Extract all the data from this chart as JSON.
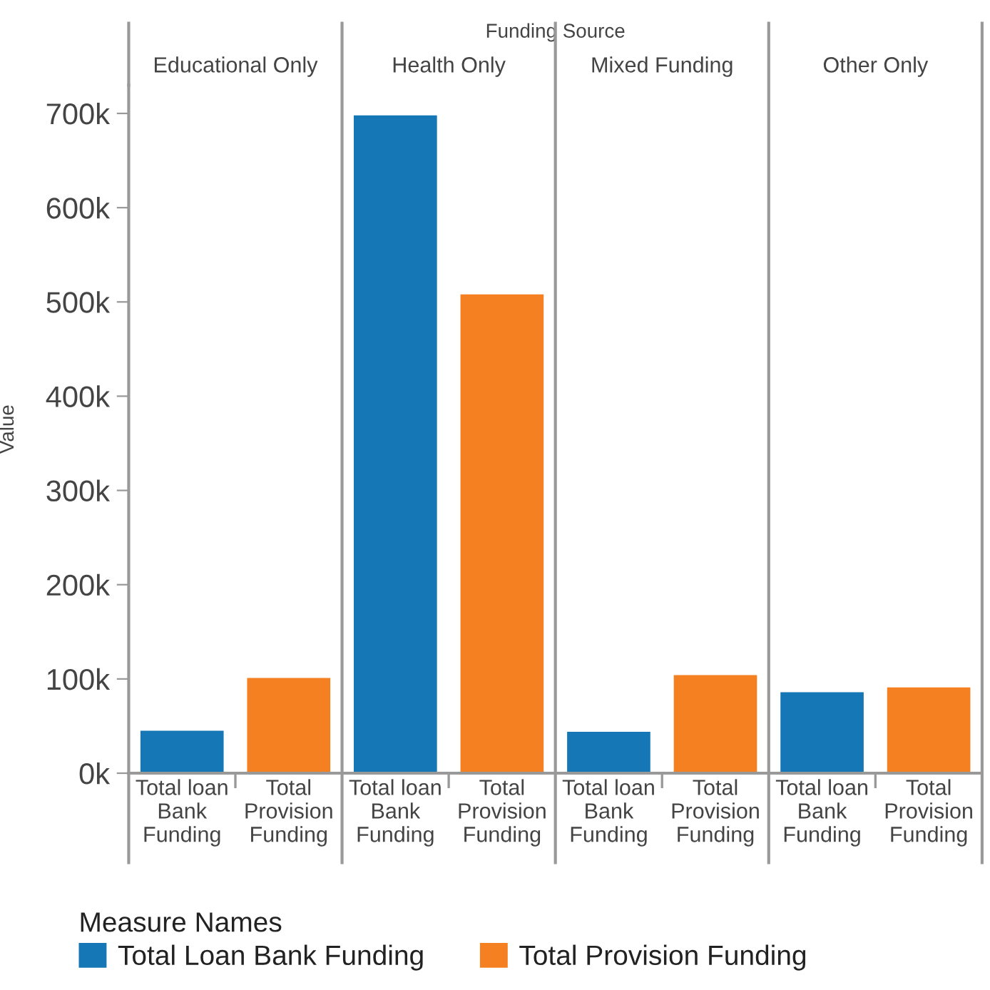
{
  "chart_data": {
    "type": "bar",
    "xlabel": "Funding Source",
    "annotations": [
      "Educational Only",
      "Health Only",
      "Mixed Funding",
      "Other Only"
    ],
    "ylabel": "Value",
    "legend_title": "Measure Names",
    "legend": "bottom",
    "categories": [
      "Total loan Bank Funding",
      "Total Provision Funding",
      "Total loan Bank Funding",
      "Total Provision Funding",
      "Total loan Bank Funding",
      "Total Provision Funding",
      "Total loan Bank Funding",
      "Total Provision Funding"
    ],
    "ylim": [
      0,
      730000
    ],
    "yticks": [
      {
        "value": 0,
        "label": "0k"
      },
      {
        "value": 100000,
        "label": "100k"
      },
      {
        "value": 200000,
        "label": "200k"
      },
      {
        "value": 300000,
        "label": "300k"
      },
      {
        "value": 400000,
        "label": "400k"
      },
      {
        "value": 500000,
        "label": "500k"
      },
      {
        "value": 600000,
        "label": "600k"
      },
      {
        "value": 700000,
        "label": "700k"
      }
    ],
    "grid": false,
    "series": [
      {
        "name": "Total Loan Bank Funding",
        "color": "#1577b5",
        "values": [
          45000,
          null,
          698000,
          null,
          44000,
          null,
          86000,
          null
        ]
      },
      {
        "name": "Total Provision Funding",
        "color": "#f58021",
        "values": [
          null,
          101000,
          null,
          508000,
          null,
          104000,
          null,
          91000
        ]
      }
    ]
  }
}
